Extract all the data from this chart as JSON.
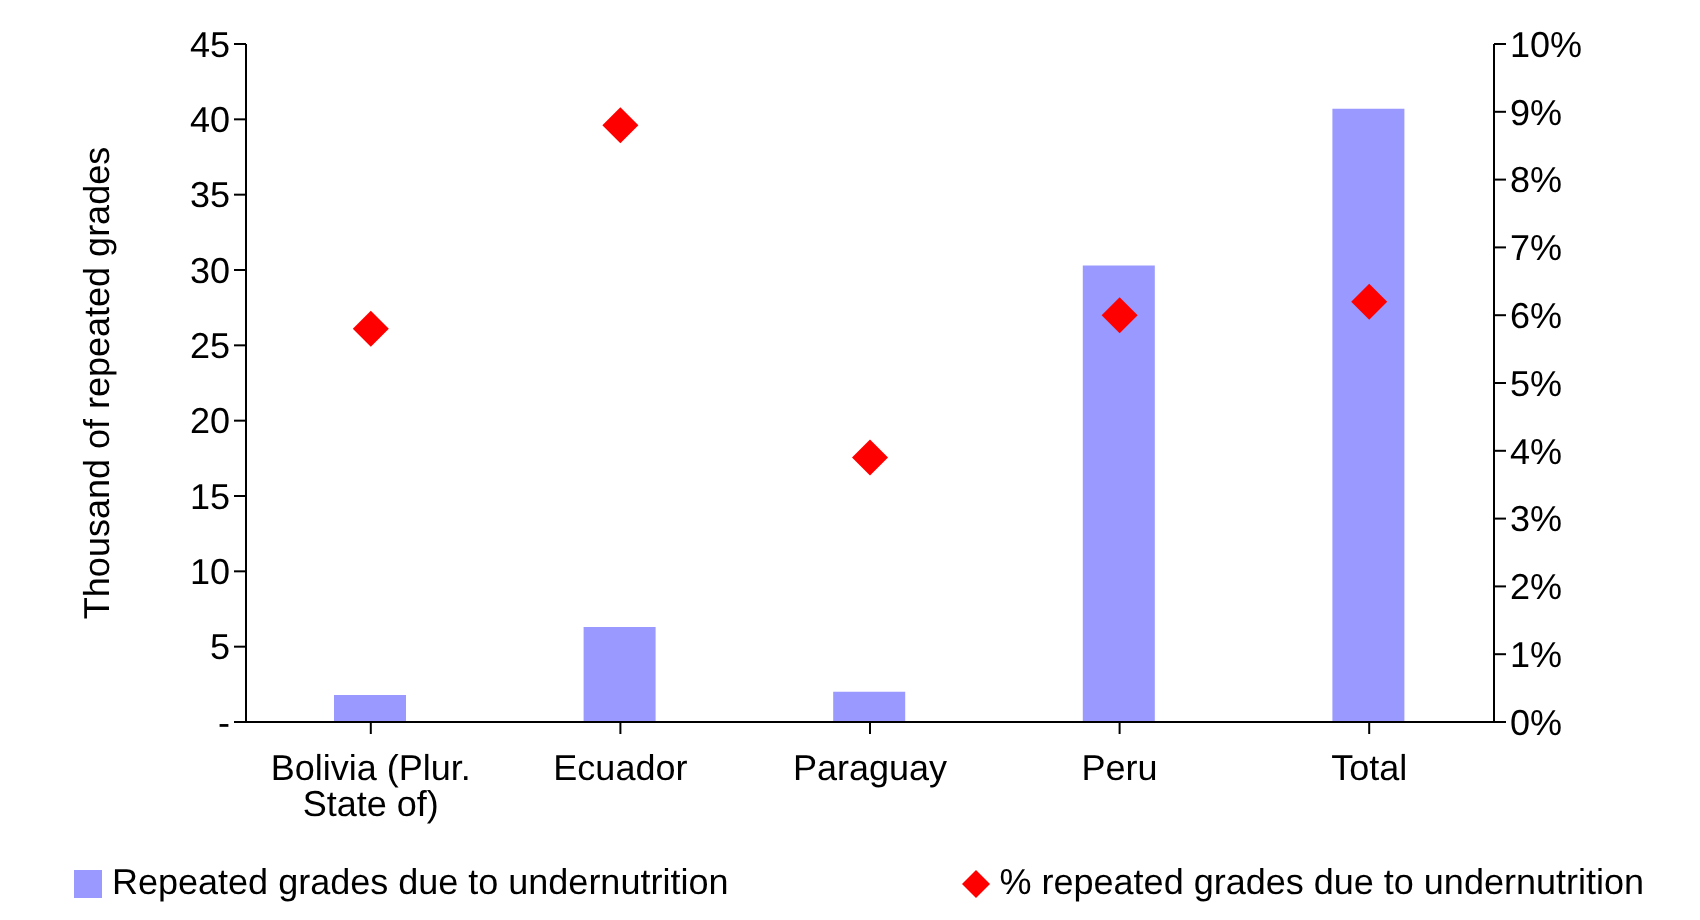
{
  "chart_data": {
    "type": "bar",
    "ylabel": "Thousand of repeated grades",
    "categories": [
      "Bolivia (Plur. State of)",
      "Ecuador",
      "Paraguay",
      "Peru",
      "Total"
    ],
    "series": [
      {
        "name": "Repeated grades due to undernutrition",
        "color": "#9999ff",
        "values": [
          1.8,
          6.3,
          2.0,
          30.3,
          40.7
        ]
      },
      {
        "name": "% repeated grades due to undernutrition",
        "type": "scatter",
        "axis": "y2",
        "color": "#ff0000",
        "marker": "diamond",
        "values": [
          5.8,
          8.8,
          3.9,
          6.0,
          6.2
        ]
      }
    ],
    "ylim": [
      0,
      45
    ],
    "yticks": [
      {
        "value": 0,
        "label": "-"
      },
      5,
      10,
      15,
      20,
      25,
      30,
      35,
      40,
      45
    ],
    "y2lim": [
      0,
      10
    ],
    "y2ticks": [
      {
        "value": 0,
        "label": "0%"
      },
      {
        "value": 1,
        "label": "1%"
      },
      {
        "value": 2,
        "label": "2%"
      },
      {
        "value": 3,
        "label": "3%"
      },
      {
        "value": 4,
        "label": "4%"
      },
      {
        "value": 5,
        "label": "5%"
      },
      {
        "value": 6,
        "label": "6%"
      },
      {
        "value": 7,
        "label": "7%"
      },
      {
        "value": 8,
        "label": "8%"
      },
      {
        "value": 9,
        "label": "9%"
      },
      {
        "value": 10,
        "label": "10%"
      }
    ],
    "grid": false,
    "legend": "bottom"
  }
}
